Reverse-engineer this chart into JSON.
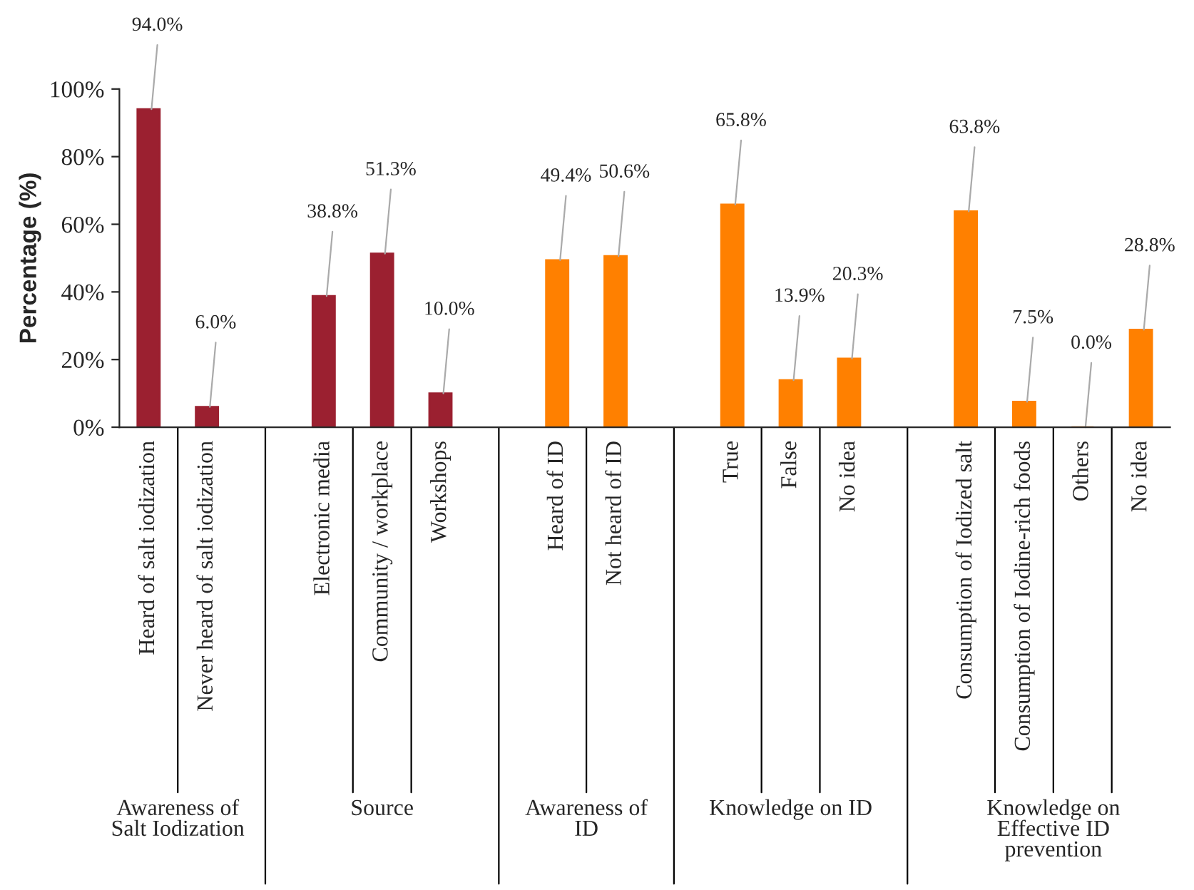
{
  "chart_data": {
    "type": "bar",
    "ylabel": "Percentage (%)",
    "categories": [
      "Heard of salt iodization",
      "Never heard of salt iodization",
      null,
      "Electronic media",
      "Community / workplace",
      "Workshops",
      null,
      "Heard of ID",
      "Not heard of ID",
      null,
      "True",
      "False",
      "No idea",
      null,
      "Consumption of Iodized salt",
      "Consumption of Iodine-rich foods",
      "Others",
      "No idea"
    ],
    "values": [
      94.0,
      6.0,
      null,
      38.8,
      51.3,
      10.0,
      null,
      49.4,
      50.6,
      null,
      65.8,
      13.9,
      20.3,
      null,
      63.8,
      7.5,
      0.0,
      28.8
    ],
    "value_labels": [
      "94.0%",
      "6.0%",
      null,
      "38.8%",
      "51.3%",
      "10.0%",
      null,
      "49.4%",
      "50.6%",
      null,
      "65.8%",
      "13.9%",
      "20.3%",
      null,
      "63.8%",
      "7.5%",
      "0.0%",
      "28.8%"
    ],
    "colors": [
      "#9b2030",
      "#9b2030",
      null,
      "#9b2030",
      "#9b2030",
      "#9b2030",
      null,
      "#ff8000",
      "#ff8000",
      null,
      "#ff8000",
      "#ff8000",
      "#ff8000",
      null,
      "#ff8000",
      "#ff8000",
      "#ff8000",
      "#ff8000"
    ],
    "ylim": [
      0,
      100
    ],
    "yticks": [
      {
        "value": 0,
        "label": "0%"
      },
      {
        "value": 20,
        "label": "20%"
      },
      {
        "value": 40,
        "label": "40%"
      },
      {
        "value": 60,
        "label": "60%"
      },
      {
        "value": 80,
        "label": "80%"
      },
      {
        "value": 100,
        "label": "100%"
      }
    ],
    "grid": false,
    "annotations": [
      "Awareness of\nSalt Iodization",
      "Source",
      "Awareness of\nID",
      "Knowledge on ID",
      "Knowledge on\nEffective ID\nprevention"
    ]
  }
}
